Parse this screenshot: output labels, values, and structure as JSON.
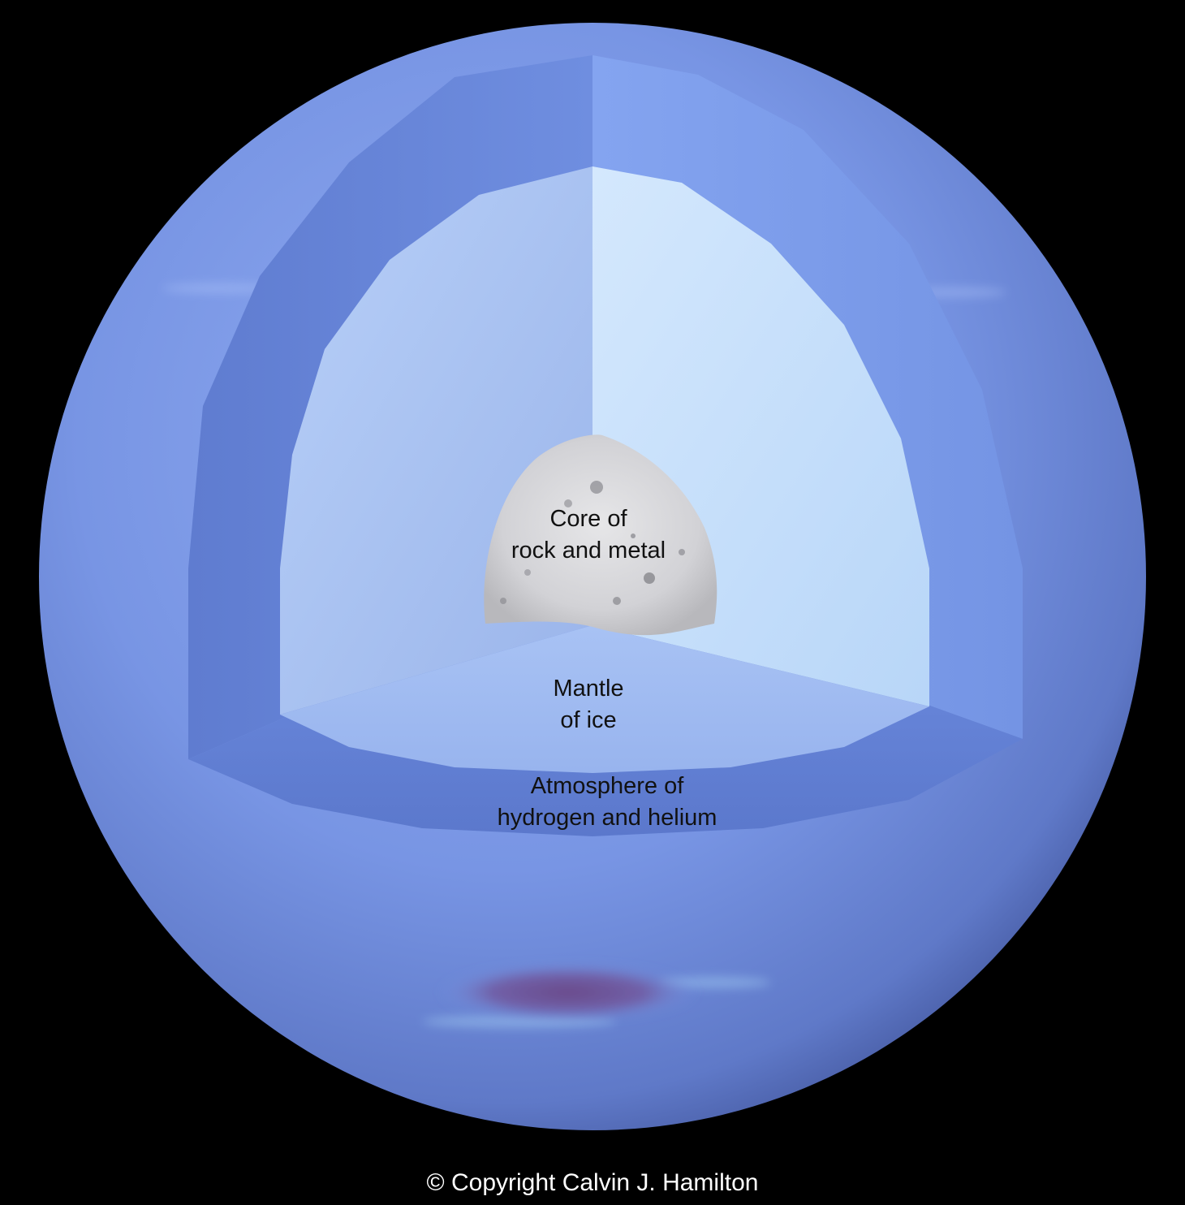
{
  "diagram": {
    "layers": [
      {
        "id": "core",
        "lines": [
          "Core of",
          "rock and metal"
        ]
      },
      {
        "id": "mantle",
        "lines": [
          "Mantle",
          "of ice"
        ]
      },
      {
        "id": "atmosphere",
        "lines": [
          "Atmosphere of",
          "hydrogen and helium"
        ]
      }
    ],
    "copyright": "© Copyright Calvin J. Hamilton",
    "colors": {
      "background": "#000000",
      "atmosphere": "#7c9ae8",
      "atmosphere_cut": "#6c86d6",
      "mantle_left": "#a8c2f2",
      "mantle_right": "#c8e0fb",
      "mantle_floor": "#9fbaf0",
      "core": "#d6d6d8",
      "label_text": "#111111",
      "copyright_text": "#ffffff"
    }
  }
}
